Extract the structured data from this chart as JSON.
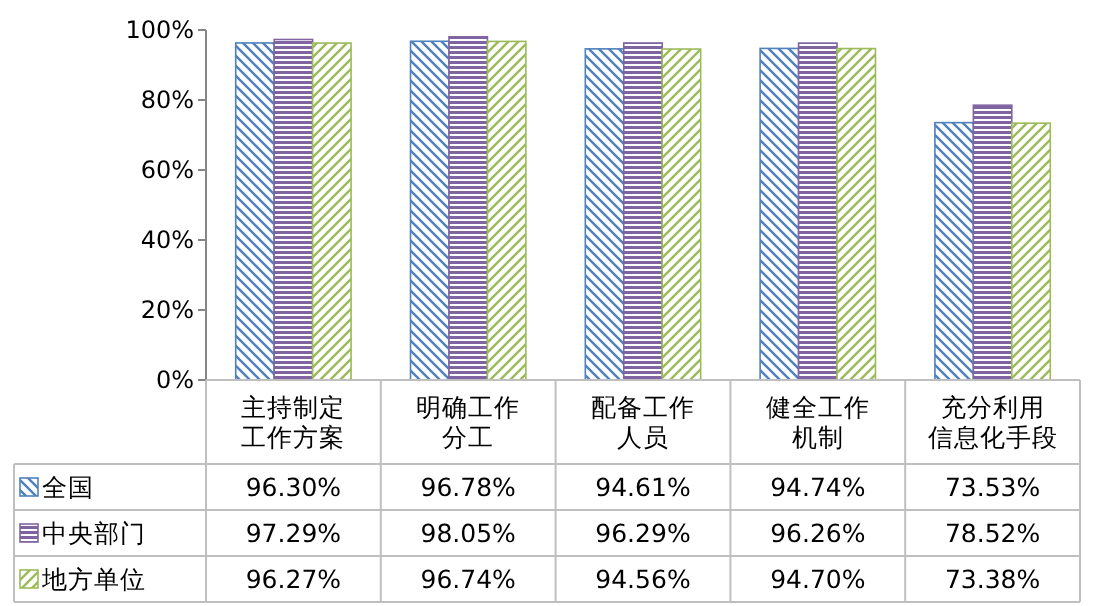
{
  "chart_data": {
    "type": "bar",
    "categories": [
      "主持制定工作方案",
      "明确工作分工",
      "配备工作人员",
      "健全工作机制",
      "充分利用信息化手段"
    ],
    "series": [
      {
        "name": "全国",
        "color": "#4f81bd",
        "values": [
          96.3,
          96.78,
          94.61,
          94.74,
          73.53
        ],
        "value_labels": [
          "96.30%",
          "96.78%",
          "94.61%",
          "94.74%",
          "73.53%"
        ]
      },
      {
        "name": "中央部门",
        "color": "#8064a2",
        "values": [
          97.29,
          98.05,
          96.29,
          96.26,
          78.52
        ],
        "value_labels": [
          "97.29%",
          "98.05%",
          "96.29%",
          "96.26%",
          "78.52%"
        ]
      },
      {
        "name": "地方单位",
        "color": "#9bbb59",
        "values": [
          96.27,
          96.74,
          94.56,
          94.7,
          73.38
        ],
        "value_labels": [
          "96.27%",
          "96.74%",
          "94.56%",
          "94.70%",
          "73.38%"
        ]
      }
    ],
    "ylim": [
      0,
      100
    ],
    "yticks": [
      {
        "value": 0,
        "label": "0%"
      },
      {
        "value": 20,
        "label": "20%"
      },
      {
        "value": 40,
        "label": "40%"
      },
      {
        "value": 60,
        "label": "60%"
      },
      {
        "value": 80,
        "label": "80%"
      },
      {
        "value": 100,
        "label": "100%"
      }
    ],
    "grid": false,
    "legend": "bottom"
  }
}
